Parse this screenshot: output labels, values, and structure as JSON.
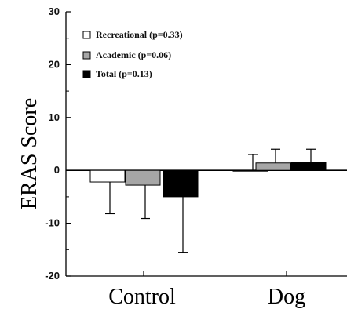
{
  "chart_data": {
    "type": "bar",
    "title": "",
    "xlabel": "",
    "ylabel": "ERAS Score",
    "ylim": [
      -20,
      30
    ],
    "yticks": [
      30,
      20,
      10,
      0,
      -10,
      -20
    ],
    "grid": false,
    "legend_position": "top-left",
    "categories": [
      "Control",
      "Dog"
    ],
    "series": [
      {
        "name": "Recreational (p=0.33)",
        "color": "#ffffff",
        "values": [
          -2.2,
          0.0
        ],
        "errors": [
          6.0,
          3.0
        ]
      },
      {
        "name": "Academic (p=0.06)",
        "color": "#a6a6a6",
        "values": [
          -2.8,
          1.4
        ],
        "errors": [
          6.3,
          2.6
        ]
      },
      {
        "name": "Total (p=0.13)",
        "color": "#000000",
        "values": [
          -5.0,
          1.5
        ],
        "errors": [
          10.5,
          2.5
        ]
      }
    ]
  }
}
